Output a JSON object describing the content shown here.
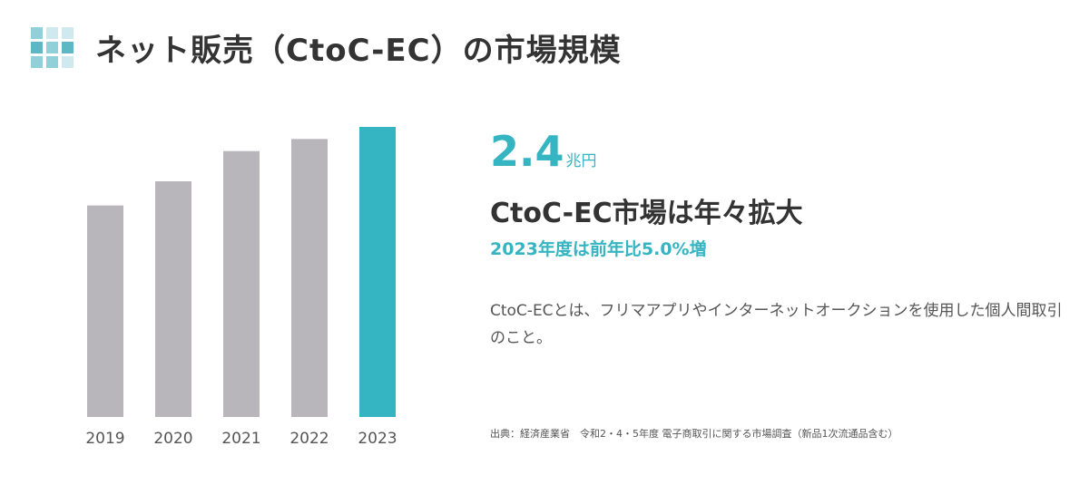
{
  "header": {
    "title": "ネット販売（CtoC-EC）の市場規模",
    "logo_icon": "grid-squares-icon"
  },
  "colors": {
    "accent": "#35b5c2",
    "bar_default": "#b9b6bb",
    "bar_highlight": "#35b5c2",
    "logo_light": "#cfe9ee",
    "logo_mid": "#8fd0d9",
    "logo_dark": "#5db7c4"
  },
  "highlight": {
    "value": "2.4",
    "unit": "兆円",
    "headline": "CtoC-EC市場は年々拡大",
    "growth": "2023年度は前年比5.0%増",
    "description": "CtoC-ECとは、フリマアプリやインターネットオークションを使用した個人間取引のこと。"
  },
  "source": "出典：経済産業省　令和2・4・5年度 電子商取引に関する市場調査（新品1次流通品含む）",
  "chart_data": {
    "type": "bar",
    "categories": [
      "2019",
      "2020",
      "2021",
      "2022",
      "2023"
    ],
    "values": [
      1.75,
      1.95,
      2.2,
      2.3,
      2.4
    ],
    "highlight_index": 4,
    "ylim": [
      0,
      2.4
    ],
    "grid": false,
    "title": "",
    "xlabel": "",
    "ylabel": ""
  }
}
